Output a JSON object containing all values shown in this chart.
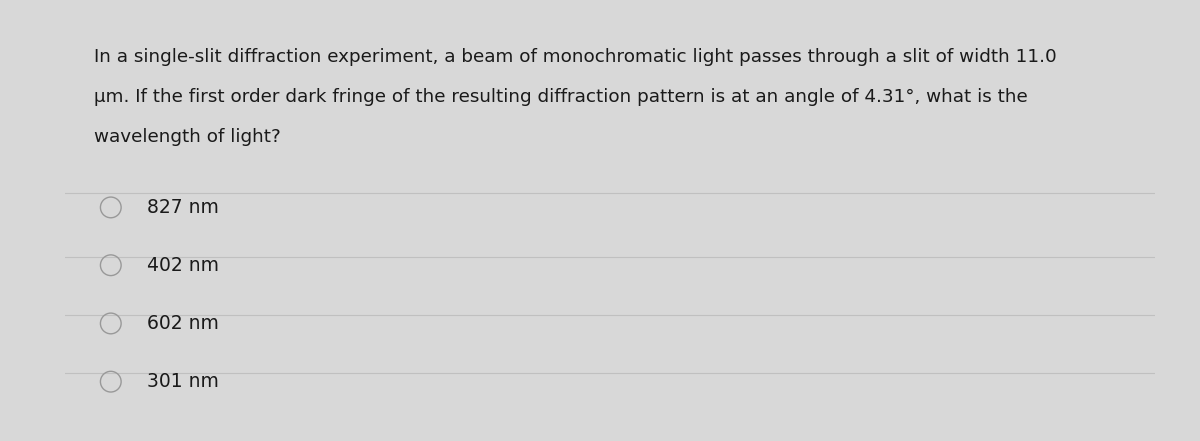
{
  "question_line1": "In a single-slit diffraction experiment, a beam of monochromatic light passes through a slit of width 11.0",
  "question_line2": "μm. If the first order dark fringe of the resulting diffraction pattern is at an angle of 4.31°, what is the",
  "question_line3": "wavelength of light?",
  "choices": [
    "827 nm",
    "402 nm",
    "602 nm",
    "301 nm"
  ],
  "bg_color": "#d8d8d8",
  "card_color": "#f5f5f5",
  "text_color": "#1a1a1a",
  "line_color": "#c0c0c0",
  "circle_color": "#999999",
  "font_size_question": 13.2,
  "font_size_choice": 13.5
}
